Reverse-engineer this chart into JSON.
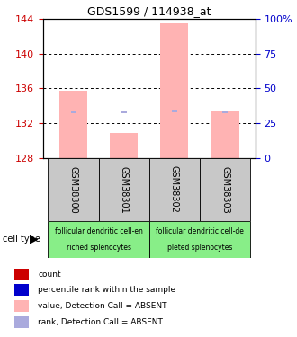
{
  "title": "GDS1599 / 114938_at",
  "samples": [
    "GSM38300",
    "GSM38301",
    "GSM38302",
    "GSM38303"
  ],
  "bar_values": [
    135.7,
    130.9,
    143.4,
    133.5
  ],
  "rank_values": [
    33.0,
    33.2,
    34.0,
    33.3
  ],
  "bar_bottom": 128.0,
  "ylim_left": [
    128,
    144
  ],
  "ylim_right": [
    0,
    100
  ],
  "yticks_left": [
    128,
    132,
    136,
    140,
    144
  ],
  "yticks_right": [
    0,
    25,
    50,
    75,
    100
  ],
  "ytick_labels_right": [
    "0",
    "25",
    "50",
    "75",
    "100%"
  ],
  "bar_color": "#FFB3B3",
  "rank_color": "#AAAADD",
  "cell_type_group1_label_line1": "follicular dendritic cell-en",
  "cell_type_group1_label_line2": "riched splenocytes",
  "cell_type_group2_label_line1": "follicular dendritic cell-de",
  "cell_type_group2_label_line2": "pleted splenocytes",
  "cell_type_bg": "#88EE88",
  "cell_type_label": "cell type",
  "sample_box_color": "#C8C8C8",
  "legend_items": [
    {
      "color": "#CC0000",
      "label": "count"
    },
    {
      "color": "#0000CC",
      "label": "percentile rank within the sample"
    },
    {
      "color": "#FFB3B3",
      "label": "value, Detection Call = ABSENT"
    },
    {
      "color": "#AAAADD",
      "label": "rank, Detection Call = ABSENT"
    }
  ],
  "bar_width": 0.55,
  "left_axis_color": "#CC0000",
  "right_axis_color": "#0000CC"
}
